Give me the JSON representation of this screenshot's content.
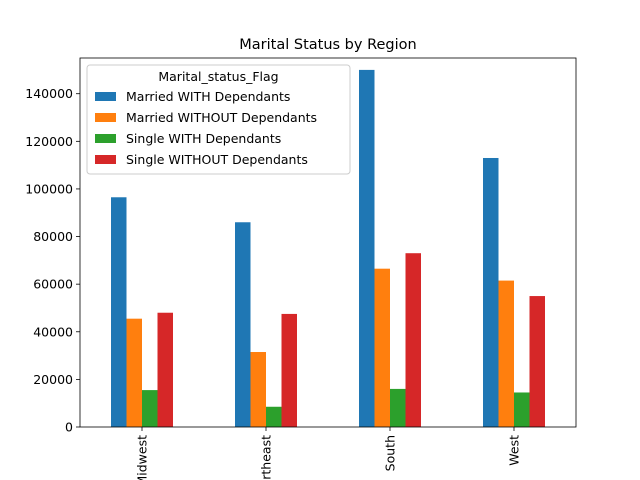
{
  "chart_data": {
    "type": "bar",
    "title": "Marital Status by Region",
    "xlabel": "",
    "ylabel": "",
    "categories": [
      "Midwest",
      "Northeast",
      "South",
      "West"
    ],
    "category_labels_visible": [
      "dwest",
      "theast",
      "South",
      "West"
    ],
    "ylim": [
      0,
      155000
    ],
    "yticks": [
      0,
      20000,
      40000,
      60000,
      80000,
      100000,
      120000,
      140000
    ],
    "grid": false,
    "legend": {
      "title": "Marital_status_Flag",
      "position": "upper-left"
    },
    "series": [
      {
        "name": "Married WITH Dependants",
        "color": "#1f77b4",
        "values": [
          96500,
          86000,
          150000,
          113000
        ]
      },
      {
        "name": "Married WITHOUT Dependants",
        "color": "#ff7f0e",
        "values": [
          45500,
          31500,
          66500,
          61500
        ]
      },
      {
        "name": "Single WITH Dependants",
        "color": "#2ca02c",
        "values": [
          15500,
          8500,
          16000,
          14500
        ]
      },
      {
        "name": "Single WITHOUT Dependants",
        "color": "#d62728",
        "values": [
          48000,
          47500,
          73000,
          55000
        ]
      }
    ]
  }
}
